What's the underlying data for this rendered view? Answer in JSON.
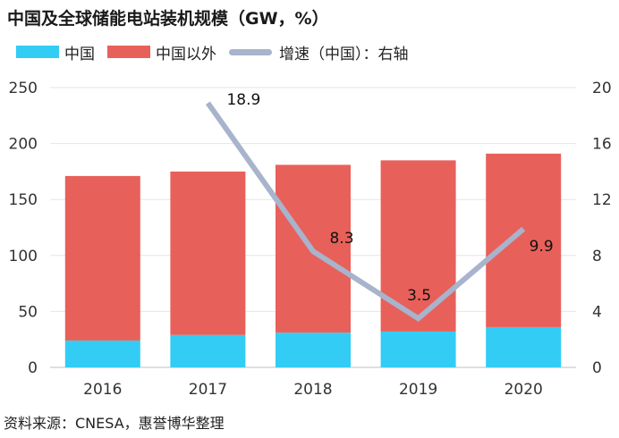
{
  "title": "中国及全球储能电站装机规模（GW，%）",
  "source": "资料来源：CNESA，惠誉博华整理",
  "legend": [
    {
      "label": "中国",
      "color": "#33ccf5",
      "kind": "bar"
    },
    {
      "label": "中国以外",
      "color": "#e8605a",
      "kind": "bar"
    },
    {
      "label": "增速（中国）：右轴",
      "color": "#a8b3cc",
      "kind": "line"
    }
  ],
  "chart_data": {
    "type": "bar",
    "categories": [
      "2016",
      "2017",
      "2018",
      "2019",
      "2020"
    ],
    "series": [
      {
        "name": "中国",
        "type": "bar",
        "stack": "total",
        "values": [
          24,
          29,
          31,
          32,
          36
        ],
        "color": "#33ccf5"
      },
      {
        "name": "中国以外",
        "type": "bar",
        "stack": "total",
        "values": [
          147,
          146,
          150,
          153,
          155
        ],
        "color": "#e8605a"
      },
      {
        "name": "增速（中国）：右轴",
        "type": "line",
        "axis": "right",
        "values": [
          null,
          18.9,
          8.3,
          3.5,
          9.9
        ],
        "labels": [
          "",
          "18.9",
          "8.3",
          "3.5",
          "9.9"
        ],
        "color": "#a8b3cc"
      }
    ],
    "y_left": {
      "min": 0,
      "max": 250,
      "ticks": [
        "0",
        "50",
        "100",
        "150",
        "200",
        "250"
      ]
    },
    "y_right": {
      "min": 0,
      "max": 20,
      "ticks": [
        "0",
        "4",
        "8",
        "12",
        "16",
        "20"
      ]
    },
    "grid": true,
    "legend_position": "top-left"
  }
}
